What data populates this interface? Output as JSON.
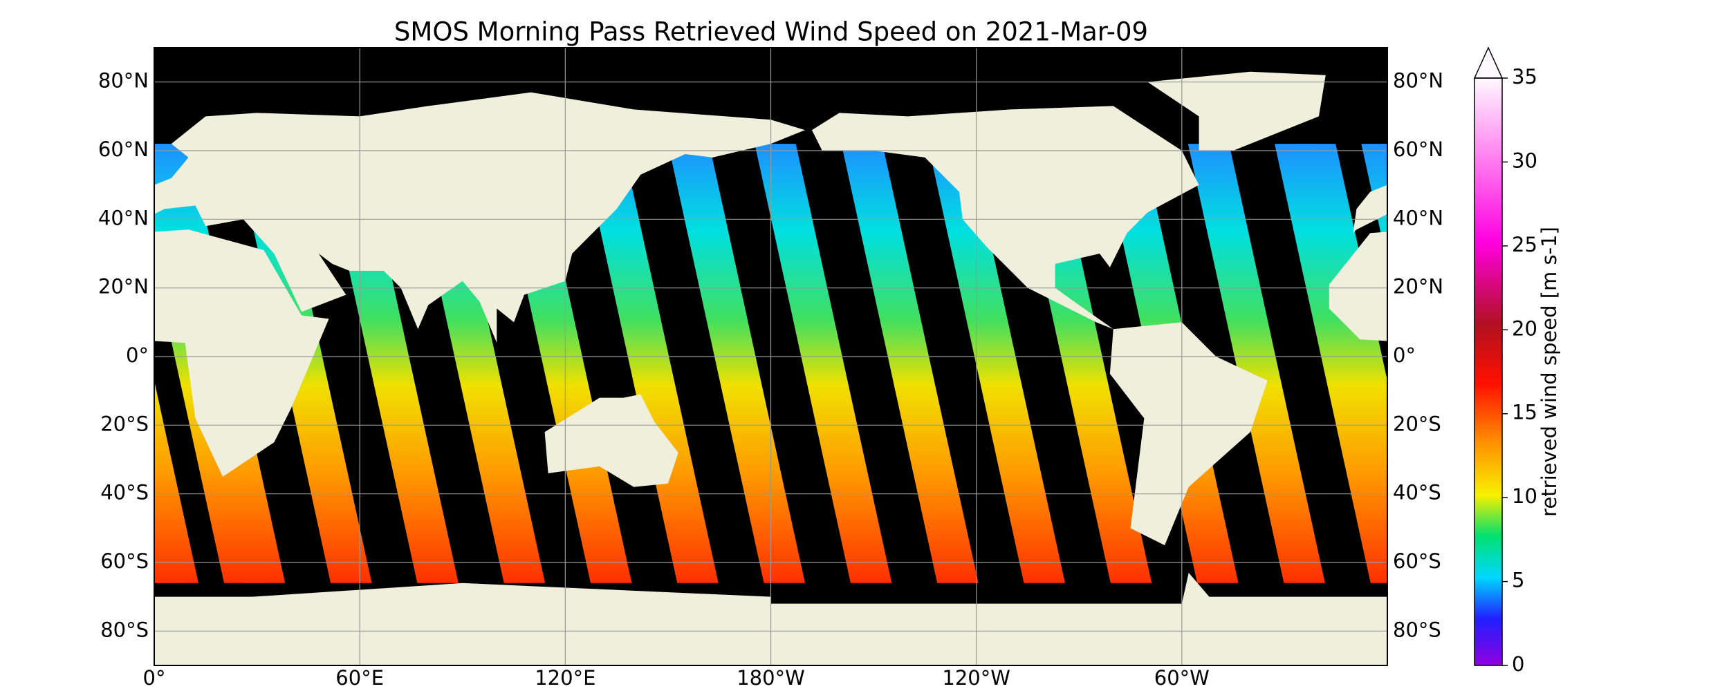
{
  "title": "SMOS Morning Pass Retrieved Wind Speed on 2021-Mar-09",
  "lat_ticks": [
    {
      "value": 80,
      "label": "80°N"
    },
    {
      "value": 60,
      "label": "60°N"
    },
    {
      "value": 40,
      "label": "40°N"
    },
    {
      "value": 20,
      "label": "20°N"
    },
    {
      "value": 0,
      "label": "0°"
    },
    {
      "value": -20,
      "label": "20°S"
    },
    {
      "value": -40,
      "label": "40°S"
    },
    {
      "value": -60,
      "label": "60°S"
    },
    {
      "value": -80,
      "label": "80°S"
    }
  ],
  "lon_ticks": [
    {
      "value": 0,
      "label": "0°"
    },
    {
      "value": 60,
      "label": "60°E"
    },
    {
      "value": 120,
      "label": "120°E"
    },
    {
      "value": -180,
      "label": "180°W"
    },
    {
      "value": -120,
      "label": "120°W"
    },
    {
      "value": -60,
      "label": "60°W"
    }
  ],
  "colorbar": {
    "label": "retrieved wind speed [m s-1]",
    "lim": [
      0,
      35
    ],
    "ticks": [
      0,
      5,
      10,
      15,
      20,
      25,
      30,
      35
    ]
  }
}
